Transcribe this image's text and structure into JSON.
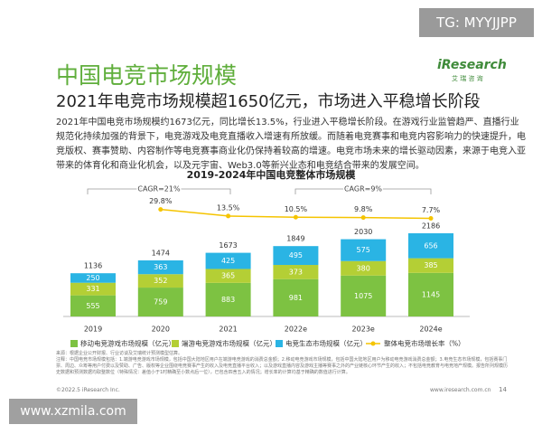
{
  "slide": {
    "watermark_top": "TG: MYYJJPP",
    "title": "中国电竞市场规模",
    "subtitle": "2021年电竞市场规模超1650亿元，市场进入平稳增长阶段",
    "logo": "iResearch",
    "logo_sub": "艾 瑞 咨 询",
    "paragraph": "2021年中国电竞市场规模约1673亿元，同比增长13.5%，行业进入平稳增长阶段。在游戏行业监管趋严、直播行业规范化持续加强的背景下，电竞游戏及电竞直播收入增速有所放缓。而随着电竞赛事和电竞内容影响力的快速提升，电竞版权、赛事赞助、内容制作等电竞赛事商业化仍保持着较高的增速。电竞市场未来的增长驱动因素，来源于电竞入亚带来的体育化和商业化机会，以及元宇宙、Web3.0等新兴业态和电竞结合带来的发展空间。",
    "notes": [
      "来源：根据企业公开财报、行业访谈及艾瑞统计预测模型估算。",
      "注释：中国电竞市场规模包括：1.端游电竞游戏市场规模，包括中国大陆地区用户在端游电竞游戏的消费总金额；2.移动电竞游戏市场规模，包括中国大陆地区用户为移动电竞游戏消费总金额；3.电竞生态市场规模，包括赛事门票、周边、众筹等用户付费以及赞助、广告、版权等企业围绕电竞赛事产生的收入及电竞直播平台收入；以及游戏直播内容及游戏主播等赛事之外的产业链核心环节产生的收入；不包括电竞教育与电竞地产规模。报告所列规模历史数据和预测数据均取整数位（特殊情况：差值小于1时精确至小数点后一位），已包含四舍五入的情况；增长率的计算均基于精确的数值进行计算。"
    ],
    "copyright": "©2022.5 iResearch Inc.",
    "website": "www.iresearch.com.cn",
    "page_number": "14",
    "watermark_bottom": "www.xzmila.com"
  },
  "chart_data": {
    "type": "stacked-bar-line",
    "title": "2019-2024年中国电竞整体市场规模",
    "categories": [
      "2019",
      "2020",
      "2021",
      "2022e",
      "2023e",
      "2024e"
    ],
    "series": [
      {
        "name": "移动电竞游戏市场规模（亿元）",
        "color": "#7dc242",
        "values": [
          555,
          759,
          883,
          981,
          1075,
          1145
        ]
      },
      {
        "name": "端游电竞游戏市场规模（亿元）",
        "color": "#b4cf35",
        "values": [
          331,
          352,
          365,
          373,
          380,
          385
        ]
      },
      {
        "name": "电竞生态市场规模（亿元）",
        "color": "#2ab4e4",
        "values": [
          250,
          363,
          425,
          495,
          575,
          656
        ]
      }
    ],
    "totals": [
      1136,
      1474,
      1673,
      1849,
      2030,
      2186
    ],
    "growth": {
      "name": "整体电竞市场增长率（%）",
      "color": "#f5c400",
      "values": [
        null,
        29.8,
        13.5,
        10.5,
        9.8,
        7.7
      ],
      "value_labels": [
        null,
        "29.8%",
        "13.5%",
        "10.5%",
        "9.8%",
        "7.7%"
      ]
    },
    "annotations": [
      "CAGR=21%",
      "CAGR=9%"
    ]
  }
}
